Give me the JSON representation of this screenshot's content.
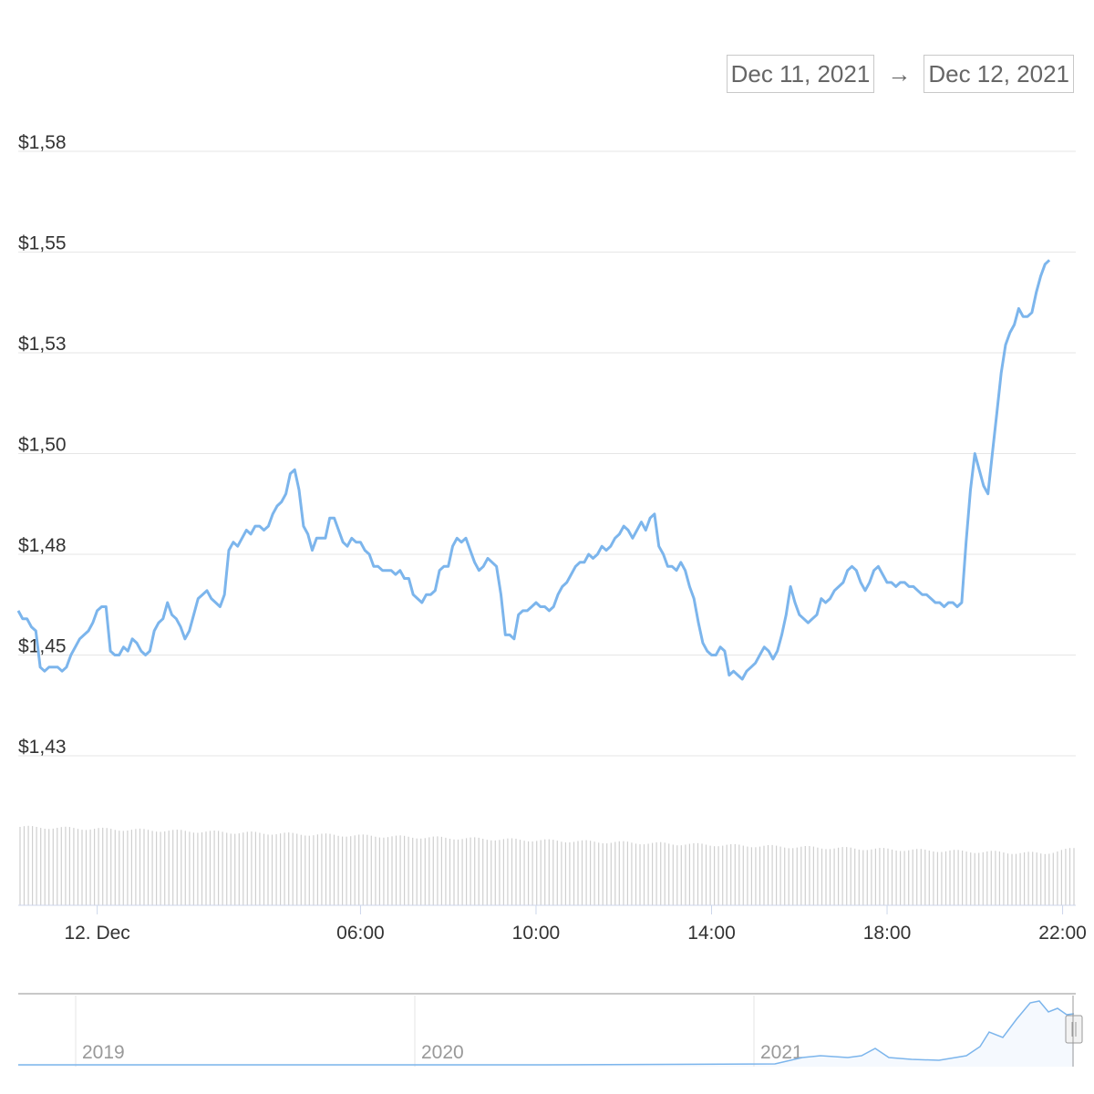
{
  "date_range": {
    "from": "Dec 11, 2021",
    "arrow": "→",
    "to": "Dec 12, 2021"
  },
  "colors": {
    "line": "#7cb5ec",
    "grid": "#e6e6e6",
    "volume": "#cfcfcf",
    "axis_text": "#333333",
    "navigator_text": "#999999"
  },
  "chart_data": {
    "type": "line",
    "yticks": [
      "$1,58",
      "$1,55",
      "$1,53",
      "$1,50",
      "$1,48",
      "$1,45",
      "$1,43"
    ],
    "ylim": [
      1.425,
      1.575
    ],
    "xticks": [
      "12. Dec",
      "06:00",
      "10:00",
      "14:00",
      "18:00",
      "22:00"
    ],
    "xlim_hours": [
      -1.8,
      22.3
    ],
    "tick_hours": [
      0,
      6,
      10,
      14,
      18,
      22
    ],
    "series": [
      {
        "values": [
          [
            -1.8,
            1.461
          ],
          [
            -1.7,
            1.459
          ],
          [
            -1.6,
            1.459
          ],
          [
            -1.5,
            1.457
          ],
          [
            -1.4,
            1.456
          ],
          [
            -1.3,
            1.447
          ],
          [
            -1.2,
            1.446
          ],
          [
            -1.1,
            1.447
          ],
          [
            -1.0,
            1.447
          ],
          [
            -0.9,
            1.447
          ],
          [
            -0.8,
            1.446
          ],
          [
            -0.7,
            1.447
          ],
          [
            -0.6,
            1.45
          ],
          [
            -0.5,
            1.452
          ],
          [
            -0.4,
            1.454
          ],
          [
            -0.3,
            1.455
          ],
          [
            -0.2,
            1.456
          ],
          [
            -0.1,
            1.458
          ],
          [
            0.0,
            1.461
          ],
          [
            0.1,
            1.462
          ],
          [
            0.2,
            1.462
          ],
          [
            0.3,
            1.451
          ],
          [
            0.4,
            1.45
          ],
          [
            0.5,
            1.45
          ],
          [
            0.6,
            1.452
          ],
          [
            0.7,
            1.451
          ],
          [
            0.8,
            1.454
          ],
          [
            0.9,
            1.453
          ],
          [
            1.0,
            1.451
          ],
          [
            1.1,
            1.45
          ],
          [
            1.2,
            1.451
          ],
          [
            1.3,
            1.456
          ],
          [
            1.4,
            1.458
          ],
          [
            1.5,
            1.459
          ],
          [
            1.6,
            1.463
          ],
          [
            1.7,
            1.46
          ],
          [
            1.8,
            1.459
          ],
          [
            1.9,
            1.457
          ],
          [
            2.0,
            1.454
          ],
          [
            2.1,
            1.456
          ],
          [
            2.2,
            1.46
          ],
          [
            2.3,
            1.464
          ],
          [
            2.4,
            1.465
          ],
          [
            2.5,
            1.466
          ],
          [
            2.6,
            1.464
          ],
          [
            2.7,
            1.463
          ],
          [
            2.8,
            1.462
          ],
          [
            2.9,
            1.465
          ],
          [
            3.0,
            1.476
          ],
          [
            3.1,
            1.478
          ],
          [
            3.2,
            1.477
          ],
          [
            3.3,
            1.479
          ],
          [
            3.4,
            1.481
          ],
          [
            3.5,
            1.48
          ],
          [
            3.6,
            1.482
          ],
          [
            3.7,
            1.482
          ],
          [
            3.8,
            1.481
          ],
          [
            3.9,
            1.482
          ],
          [
            4.0,
            1.485
          ],
          [
            4.1,
            1.487
          ],
          [
            4.2,
            1.488
          ],
          [
            4.3,
            1.49
          ],
          [
            4.4,
            1.495
          ],
          [
            4.5,
            1.496
          ],
          [
            4.6,
            1.491
          ],
          [
            4.7,
            1.482
          ],
          [
            4.8,
            1.48
          ],
          [
            4.9,
            1.476
          ],
          [
            5.0,
            1.479
          ],
          [
            5.1,
            1.479
          ],
          [
            5.2,
            1.479
          ],
          [
            5.3,
            1.484
          ],
          [
            5.4,
            1.484
          ],
          [
            5.5,
            1.481
          ],
          [
            5.6,
            1.478
          ],
          [
            5.7,
            1.477
          ],
          [
            5.8,
            1.479
          ],
          [
            5.9,
            1.478
          ],
          [
            6.0,
            1.478
          ],
          [
            6.1,
            1.476
          ],
          [
            6.2,
            1.475
          ],
          [
            6.3,
            1.472
          ],
          [
            6.4,
            1.472
          ],
          [
            6.5,
            1.471
          ],
          [
            6.6,
            1.471
          ],
          [
            6.7,
            1.471
          ],
          [
            6.8,
            1.47
          ],
          [
            6.9,
            1.471
          ],
          [
            7.0,
            1.469
          ],
          [
            7.1,
            1.469
          ],
          [
            7.2,
            1.465
          ],
          [
            7.3,
            1.464
          ],
          [
            7.4,
            1.463
          ],
          [
            7.5,
            1.465
          ],
          [
            7.6,
            1.465
          ],
          [
            7.7,
            1.466
          ],
          [
            7.8,
            1.471
          ],
          [
            7.9,
            1.472
          ],
          [
            8.0,
            1.472
          ],
          [
            8.1,
            1.477
          ],
          [
            8.2,
            1.479
          ],
          [
            8.3,
            1.478
          ],
          [
            8.4,
            1.479
          ],
          [
            8.5,
            1.476
          ],
          [
            8.6,
            1.473
          ],
          [
            8.7,
            1.471
          ],
          [
            8.8,
            1.472
          ],
          [
            8.9,
            1.474
          ],
          [
            9.0,
            1.473
          ],
          [
            9.1,
            1.472
          ],
          [
            9.2,
            1.465
          ],
          [
            9.3,
            1.455
          ],
          [
            9.4,
            1.455
          ],
          [
            9.5,
            1.454
          ],
          [
            9.6,
            1.46
          ],
          [
            9.7,
            1.461
          ],
          [
            9.8,
            1.461
          ],
          [
            9.9,
            1.462
          ],
          [
            10.0,
            1.463
          ],
          [
            10.1,
            1.462
          ],
          [
            10.2,
            1.462
          ],
          [
            10.3,
            1.461
          ],
          [
            10.4,
            1.462
          ],
          [
            10.5,
            1.465
          ],
          [
            10.6,
            1.467
          ],
          [
            10.7,
            1.468
          ],
          [
            10.8,
            1.47
          ],
          [
            10.9,
            1.472
          ],
          [
            11.0,
            1.473
          ],
          [
            11.1,
            1.473
          ],
          [
            11.2,
            1.475
          ],
          [
            11.3,
            1.474
          ],
          [
            11.4,
            1.475
          ],
          [
            11.5,
            1.477
          ],
          [
            11.6,
            1.476
          ],
          [
            11.7,
            1.477
          ],
          [
            11.8,
            1.479
          ],
          [
            11.9,
            1.48
          ],
          [
            12.0,
            1.482
          ],
          [
            12.1,
            1.481
          ],
          [
            12.2,
            1.479
          ],
          [
            12.3,
            1.481
          ],
          [
            12.4,
            1.483
          ],
          [
            12.5,
            1.481
          ],
          [
            12.6,
            1.484
          ],
          [
            12.7,
            1.485
          ],
          [
            12.8,
            1.477
          ],
          [
            12.9,
            1.475
          ],
          [
            13.0,
            1.472
          ],
          [
            13.1,
            1.472
          ],
          [
            13.2,
            1.471
          ],
          [
            13.3,
            1.473
          ],
          [
            13.4,
            1.471
          ],
          [
            13.5,
            1.467
          ],
          [
            13.6,
            1.464
          ],
          [
            13.7,
            1.458
          ],
          [
            13.8,
            1.453
          ],
          [
            13.9,
            1.451
          ],
          [
            14.0,
            1.45
          ],
          [
            14.1,
            1.45
          ],
          [
            14.2,
            1.452
          ],
          [
            14.3,
            1.451
          ],
          [
            14.4,
            1.445
          ],
          [
            14.5,
            1.446
          ],
          [
            14.6,
            1.445
          ],
          [
            14.7,
            1.444
          ],
          [
            14.8,
            1.446
          ],
          [
            14.9,
            1.447
          ],
          [
            15.0,
            1.448
          ],
          [
            15.1,
            1.45
          ],
          [
            15.2,
            1.452
          ],
          [
            15.3,
            1.451
          ],
          [
            15.4,
            1.449
          ],
          [
            15.5,
            1.451
          ],
          [
            15.6,
            1.455
          ],
          [
            15.7,
            1.46
          ],
          [
            15.8,
            1.467
          ],
          [
            15.9,
            1.463
          ],
          [
            16.0,
            1.46
          ],
          [
            16.1,
            1.459
          ],
          [
            16.2,
            1.458
          ],
          [
            16.3,
            1.459
          ],
          [
            16.4,
            1.46
          ],
          [
            16.5,
            1.464
          ],
          [
            16.6,
            1.463
          ],
          [
            16.7,
            1.464
          ],
          [
            16.8,
            1.466
          ],
          [
            16.9,
            1.467
          ],
          [
            17.0,
            1.468
          ],
          [
            17.1,
            1.471
          ],
          [
            17.2,
            1.472
          ],
          [
            17.3,
            1.471
          ],
          [
            17.4,
            1.468
          ],
          [
            17.5,
            1.466
          ],
          [
            17.6,
            1.468
          ],
          [
            17.7,
            1.471
          ],
          [
            17.8,
            1.472
          ],
          [
            17.9,
            1.47
          ],
          [
            18.0,
            1.468
          ],
          [
            18.1,
            1.468
          ],
          [
            18.2,
            1.467
          ],
          [
            18.3,
            1.468
          ],
          [
            18.4,
            1.468
          ],
          [
            18.5,
            1.467
          ],
          [
            18.6,
            1.467
          ],
          [
            18.7,
            1.466
          ],
          [
            18.8,
            1.465
          ],
          [
            18.9,
            1.465
          ],
          [
            19.0,
            1.464
          ],
          [
            19.1,
            1.463
          ],
          [
            19.2,
            1.463
          ],
          [
            19.3,
            1.462
          ],
          [
            19.4,
            1.463
          ],
          [
            19.5,
            1.463
          ],
          [
            19.6,
            1.462
          ],
          [
            19.7,
            1.463
          ],
          [
            19.8,
            1.478
          ],
          [
            19.9,
            1.491
          ],
          [
            20.0,
            1.5
          ],
          [
            20.1,
            1.496
          ],
          [
            20.2,
            1.492
          ],
          [
            20.3,
            1.49
          ],
          [
            20.4,
            1.5
          ],
          [
            20.5,
            1.51
          ],
          [
            20.6,
            1.52
          ],
          [
            20.7,
            1.527
          ],
          [
            20.8,
            1.53
          ],
          [
            20.9,
            1.532
          ],
          [
            21.0,
            1.536
          ],
          [
            21.1,
            1.534
          ],
          [
            21.2,
            1.534
          ],
          [
            21.3,
            1.535
          ],
          [
            21.4,
            1.54
          ],
          [
            21.5,
            1.544
          ],
          [
            21.6,
            1.547
          ],
          [
            21.7,
            1.548
          ]
        ]
      }
    ],
    "volume_label_count": 256
  },
  "navigator": {
    "labels": [
      "2019",
      "2020",
      "2021"
    ]
  }
}
